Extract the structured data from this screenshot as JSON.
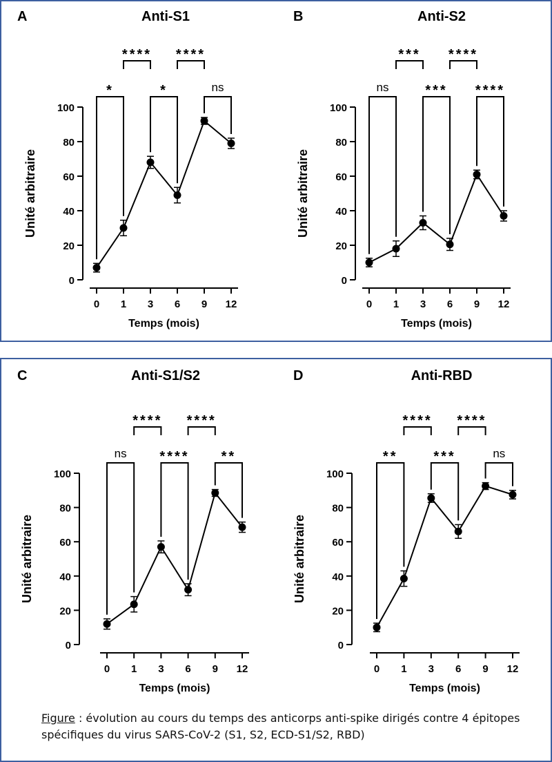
{
  "panels": [
    {
      "letter": "A",
      "chart_data": {
        "type": "line",
        "title": "Anti-S1",
        "xlabel": "Temps (mois)",
        "ylabel": "Unité arbitraire",
        "categories": [
          "0",
          "1",
          "3",
          "6",
          "9",
          "12"
        ],
        "values": [
          7,
          30,
          68,
          49,
          92,
          79
        ],
        "errors": [
          2.5,
          4.5,
          3.5,
          4.5,
          2,
          3
        ],
        "ylim": [
          0,
          100
        ],
        "yticks": [
          0,
          20,
          40,
          60,
          80,
          100
        ],
        "significance": [
          {
            "from": 0,
            "to": 1,
            "label": "*",
            "tier": 1
          },
          {
            "from": 1,
            "to": 2,
            "label": "****",
            "tier": 2
          },
          {
            "from": 2,
            "to": 3,
            "label": "*",
            "tier": 1
          },
          {
            "from": 3,
            "to": 4,
            "label": "****",
            "tier": 2
          },
          {
            "from": 4,
            "to": 5,
            "label": "ns",
            "tier": 1
          }
        ]
      }
    },
    {
      "letter": "B",
      "chart_data": {
        "type": "line",
        "title": "Anti-S2",
        "xlabel": "Temps (mois)",
        "ylabel": "Unité arbitraire",
        "categories": [
          "0",
          "1",
          "3",
          "6",
          "9",
          "12"
        ],
        "values": [
          10,
          18,
          33,
          20.5,
          61,
          37
        ],
        "errors": [
          2.5,
          4.5,
          4,
          3.5,
          2.5,
          3
        ],
        "ylim": [
          0,
          100
        ],
        "yticks": [
          0,
          20,
          40,
          60,
          80,
          100
        ],
        "significance": [
          {
            "from": 0,
            "to": 1,
            "label": "ns",
            "tier": 1
          },
          {
            "from": 1,
            "to": 2,
            "label": "***",
            "tier": 2
          },
          {
            "from": 2,
            "to": 3,
            "label": "***",
            "tier": 1
          },
          {
            "from": 3,
            "to": 4,
            "label": "****",
            "tier": 2
          },
          {
            "from": 4,
            "to": 5,
            "label": "****",
            "tier": 1
          }
        ]
      }
    },
    {
      "letter": "C",
      "chart_data": {
        "type": "line",
        "title": "Anti-S1/S2",
        "xlabel": "Temps (mois)",
        "ylabel": "Unité arbitraire",
        "categories": [
          "0",
          "1",
          "3",
          "6",
          "9",
          "12"
        ],
        "values": [
          12,
          23.5,
          57,
          32,
          88.5,
          68.5
        ],
        "errors": [
          3,
          4.5,
          3.5,
          3.5,
          2,
          3
        ],
        "ylim": [
          0,
          100
        ],
        "yticks": [
          0,
          20,
          40,
          60,
          80,
          100
        ],
        "significance": [
          {
            "from": 0,
            "to": 1,
            "label": "ns",
            "tier": 1
          },
          {
            "from": 1,
            "to": 2,
            "label": "****",
            "tier": 2
          },
          {
            "from": 2,
            "to": 3,
            "label": "****",
            "tier": 1
          },
          {
            "from": 3,
            "to": 4,
            "label": "****",
            "tier": 2
          },
          {
            "from": 4,
            "to": 5,
            "label": "**",
            "tier": 1
          }
        ]
      }
    },
    {
      "letter": "D",
      "chart_data": {
        "type": "line",
        "title": "Anti-RBD",
        "xlabel": "Temps (mois)",
        "ylabel": "Unité arbitraire",
        "categories": [
          "0",
          "1",
          "3",
          "6",
          "9",
          "12"
        ],
        "values": [
          10,
          38.5,
          85.5,
          66,
          92.5,
          87.5
        ],
        "errors": [
          2.5,
          4.5,
          2.5,
          4,
          2,
          2.5
        ],
        "ylim": [
          0,
          100
        ],
        "yticks": [
          0,
          20,
          40,
          60,
          80,
          100
        ],
        "significance": [
          {
            "from": 0,
            "to": 1,
            "label": "**",
            "tier": 1
          },
          {
            "from": 1,
            "to": 2,
            "label": "****",
            "tier": 2
          },
          {
            "from": 2,
            "to": 3,
            "label": "***",
            "tier": 1
          },
          {
            "from": 3,
            "to": 4,
            "label": "****",
            "tier": 2
          },
          {
            "from": 4,
            "to": 5,
            "label": "ns",
            "tier": 1
          }
        ]
      }
    }
  ],
  "caption": {
    "figure_label": "Figure",
    "text": " : évolution au cours du temps des anticorps anti-spike dirigés contre 4 épitopes spécifiques du virus SARS-CoV-2 (S1, S2, ECD-S1/S2, RBD)"
  }
}
